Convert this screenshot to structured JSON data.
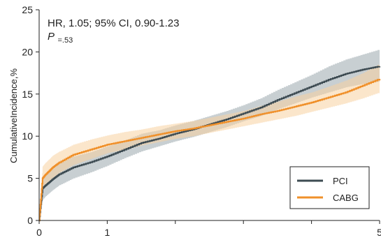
{
  "chart_data": {
    "type": "line",
    "title": "",
    "xlabel": "",
    "ylabel": "CumulativeIncidence,%",
    "xlim": [
      0,
      5
    ],
    "ylim": [
      0,
      25
    ],
    "x_ticks": [
      0,
      1,
      2,
      3,
      4,
      5
    ],
    "x_tick_labels": [
      "0",
      "1",
      "",
      "",
      "",
      "5"
    ],
    "y_ticks": [
      0,
      5,
      10,
      15,
      20,
      25
    ],
    "y_tick_labels": [
      "0",
      "5",
      "10",
      "15",
      "20",
      "25"
    ],
    "grid": false,
    "legend_position": "bottom-right",
    "annotation": {
      "line1": "HR, 1.05; 95% CI, 0.90-1.23",
      "p_label": "P",
      "p_value": "=.53"
    },
    "series": [
      {
        "name": "PCI",
        "color": "#3d4b52",
        "band_color": "#9aa8ad",
        "x": [
          0,
          0.05,
          0.1,
          0.2,
          0.3,
          0.5,
          0.75,
          1.0,
          1.25,
          1.5,
          1.75,
          2.0,
          2.25,
          2.5,
          2.75,
          3.0,
          3.25,
          3.5,
          3.75,
          4.0,
          4.25,
          4.5,
          4.75,
          5.0
        ],
        "y": [
          0,
          3.8,
          4.2,
          4.9,
          5.5,
          6.3,
          6.9,
          7.6,
          8.4,
          9.2,
          9.7,
          10.3,
          10.8,
          11.4,
          12.0,
          12.7,
          13.4,
          14.3,
          15.1,
          15.9,
          16.7,
          17.4,
          17.9,
          18.3
        ],
        "lower": [
          0,
          2.4,
          2.9,
          3.6,
          4.2,
          5.0,
          5.7,
          6.5,
          7.4,
          8.2,
          8.8,
          9.4,
          9.9,
          10.5,
          11.1,
          11.8,
          12.4,
          13.2,
          13.9,
          14.6,
          15.2,
          15.8,
          16.2,
          16.5
        ],
        "upper": [
          0,
          5.0,
          5.5,
          6.1,
          6.8,
          7.6,
          8.1,
          8.8,
          9.5,
          10.3,
          10.7,
          11.3,
          11.8,
          12.4,
          13.0,
          13.7,
          14.5,
          15.5,
          16.4,
          17.3,
          18.3,
          19.1,
          19.7,
          20.3
        ]
      },
      {
        "name": "CABG",
        "color": "#f0902a",
        "band_color": "#f7d2a0",
        "x": [
          0,
          0.05,
          0.1,
          0.2,
          0.3,
          0.5,
          0.75,
          1.0,
          1.25,
          1.5,
          1.75,
          2.0,
          2.25,
          2.5,
          2.75,
          3.0,
          3.25,
          3.5,
          3.75,
          4.0,
          4.25,
          4.5,
          4.75,
          5.0
        ],
        "y": [
          0,
          5.0,
          5.5,
          6.3,
          6.9,
          7.8,
          8.4,
          9.0,
          9.4,
          9.8,
          10.2,
          10.6,
          10.9,
          11.3,
          11.7,
          12.1,
          12.6,
          13.0,
          13.5,
          14.0,
          14.6,
          15.2,
          16.0,
          16.8
        ],
        "lower": [
          0,
          3.6,
          4.2,
          5.0,
          5.7,
          6.6,
          7.3,
          8.0,
          8.4,
          8.9,
          9.3,
          9.7,
          10.0,
          10.4,
          10.8,
          11.2,
          11.6,
          12.0,
          12.4,
          12.9,
          13.4,
          13.9,
          14.5,
          15.2
        ],
        "upper": [
          0,
          6.4,
          6.9,
          7.7,
          8.2,
          9.0,
          9.6,
          10.1,
          10.5,
          10.8,
          11.2,
          11.5,
          11.8,
          12.2,
          12.6,
          13.0,
          13.6,
          14.1,
          14.7,
          15.2,
          15.9,
          16.6,
          17.5,
          18.6
        ]
      }
    ]
  }
}
